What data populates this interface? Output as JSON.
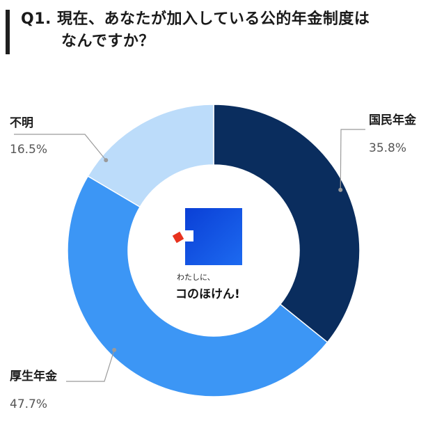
{
  "question": {
    "line1": "Q1. 現在、あなたが加入している公的年金制度は",
    "line2": "なんですか？"
  },
  "logo": {
    "line1": "わたしに、",
    "line2": "コのほけん!"
  },
  "chart_data": {
    "type": "pie",
    "donut": true,
    "categories": [
      "国民年金",
      "厚生年金",
      "不明"
    ],
    "values": [
      35.8,
      47.7,
      16.5
    ],
    "value_labels": [
      "35.8%",
      "47.7%",
      "16.5%"
    ],
    "colors": [
      "#0a2d5e",
      "#3c96f5",
      "#bcdcfa"
    ],
    "start": "12 o'clock",
    "direction": "clockwise",
    "legend": "none"
  }
}
